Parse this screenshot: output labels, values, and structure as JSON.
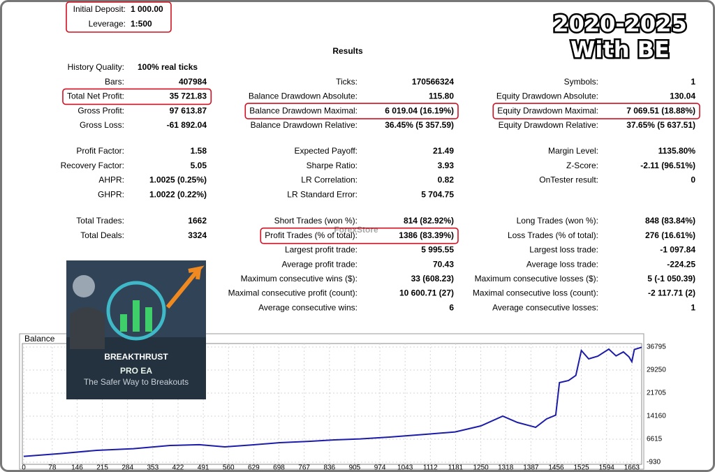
{
  "header": {
    "deposit_label": "Initial Deposit:",
    "deposit": "1 000.00",
    "leverage_label": "Leverage:",
    "leverage": "1:500"
  },
  "overlay": {
    "line1": "2020-2025",
    "line2": "With BE"
  },
  "watermark": "ForexStore",
  "logo": {
    "name": "BREAKTHRUST",
    "product": "PRO EA",
    "tagline": "The Safer Way to Breakouts"
  },
  "results": {
    "title": "Results",
    "sections": [
      {
        "columns": [
          [
            {
              "label": "History Quality:",
              "value": "100% real ticks"
            },
            {
              "label": "Bars:",
              "value": "407984"
            },
            {
              "label": "Total Net Profit:",
              "value": "35 721.83"
            },
            {
              "label": "Gross Profit:",
              "value": "97 613.87"
            },
            {
              "label": "Gross Loss:",
              "value": "-61 892.04"
            }
          ],
          [
            {
              "label": "Ticks:",
              "value": "170566324"
            },
            {
              "label": "Balance Drawdown Absolute:",
              "value": "115.80"
            },
            {
              "label": "Balance Drawdown Maximal:",
              "value": "6 019.04 (16.19%)"
            },
            {
              "label": "Balance Drawdown Relative:",
              "value": "36.45% (5 357.59)"
            }
          ],
          [
            {
              "label": "Symbols:",
              "value": "1"
            },
            {
              "label": "Equity Drawdown Absolute:",
              "value": "130.04"
            },
            {
              "label": "Equity Drawdown Maximal:",
              "value": "7 069.51 (18.88%)"
            },
            {
              "label": "Equity Drawdown Relative:",
              "value": "37.65% (5 637.51)"
            }
          ]
        ]
      },
      {
        "columns": [
          [
            {
              "label": "Profit Factor:",
              "value": "1.58"
            },
            {
              "label": "Recovery Factor:",
              "value": "5.05"
            },
            {
              "label": "AHPR:",
              "value": "1.0025 (0.25%)"
            },
            {
              "label": "GHPR:",
              "value": "1.0022 (0.22%)"
            }
          ],
          [
            {
              "label": "Expected Payoff:",
              "value": "21.49"
            },
            {
              "label": "Sharpe Ratio:",
              "value": "3.93"
            },
            {
              "label": "LR Correlation:",
              "value": "0.82"
            },
            {
              "label": "LR Standard Error:",
              "value": "5 704.75"
            }
          ],
          [
            {
              "label": "Margin Level:",
              "value": "1135.80%"
            },
            {
              "label": "Z-Score:",
              "value": "-2.11 (96.51%)"
            },
            {
              "label": "OnTester result:",
              "value": "0"
            }
          ]
        ]
      },
      {
        "columns": [
          [
            {
              "label": "Total Trades:",
              "value": "1662"
            },
            {
              "label": "Total Deals:",
              "value": "3324"
            }
          ],
          [
            {
              "label": "Short Trades (won %):",
              "value": "814 (82.92%)"
            },
            {
              "label": "Profit Trades (% of total):",
              "value": "1386 (83.39%)"
            },
            {
              "label": "Largest profit trade:",
              "value": "5 995.55"
            },
            {
              "label": "Average profit trade:",
              "value": "70.43"
            },
            {
              "label": "Maximum consecutive wins ($):",
              "value": "33 (608.23)"
            },
            {
              "label": "Maximal consecutive profit (count):",
              "value": "10 600.71 (27)"
            },
            {
              "label": "Average consecutive wins:",
              "value": "6"
            }
          ],
          [
            {
              "label": "Long Trades (won %):",
              "value": "848 (83.84%)"
            },
            {
              "label": "Loss Trades (% of total):",
              "value": "276 (16.61%)"
            },
            {
              "label": "Largest loss trade:",
              "value": "-1 097.84"
            },
            {
              "label": "Average loss trade:",
              "value": "-224.25"
            },
            {
              "label": "Maximum consecutive losses ($):",
              "value": "5 (-1 050.39)"
            },
            {
              "label": "Maximal consecutive loss (count):",
              "value": "-2 117.71 (2)"
            },
            {
              "label": "Average consecutive losses:",
              "value": "1"
            }
          ]
        ]
      }
    ]
  },
  "chart_data": {
    "type": "line",
    "title": "Balance",
    "color": "#1c1ca8",
    "x": [
      0,
      100,
      200,
      300,
      400,
      480,
      550,
      620,
      700,
      780,
      850,
      920,
      1000,
      1100,
      1180,
      1250,
      1310,
      1350,
      1400,
      1430,
      1455,
      1465,
      1490,
      1510,
      1525,
      1545,
      1570,
      1600,
      1620,
      1640,
      1655,
      1663,
      1670,
      1690
    ],
    "values": [
      1000,
      1900,
      2960,
      3500,
      4560,
      4800,
      4100,
      4700,
      5470,
      5900,
      6385,
      6700,
      7300,
      8215,
      9000,
      10960,
      14160,
      12100,
      10500,
      13250,
      14500,
      25140,
      25820,
      27500,
      35650,
      32900,
      33800,
      36100,
      33900,
      35200,
      33600,
      32000,
      36000,
      36722
    ],
    "xlim": [
      0,
      1690
    ],
    "ylim": [
      -930,
      36795
    ],
    "xticks": [
      0,
      78,
      146,
      215,
      284,
      353,
      422,
      491,
      560,
      629,
      698,
      767,
      836,
      905,
      974,
      1043,
      1112,
      1181,
      1250,
      1318,
      1387,
      1456,
      1525,
      1594,
      1663
    ],
    "yticks": [
      -930,
      6615,
      14160,
      21705,
      29250,
      36795
    ],
    "grid": true
  }
}
